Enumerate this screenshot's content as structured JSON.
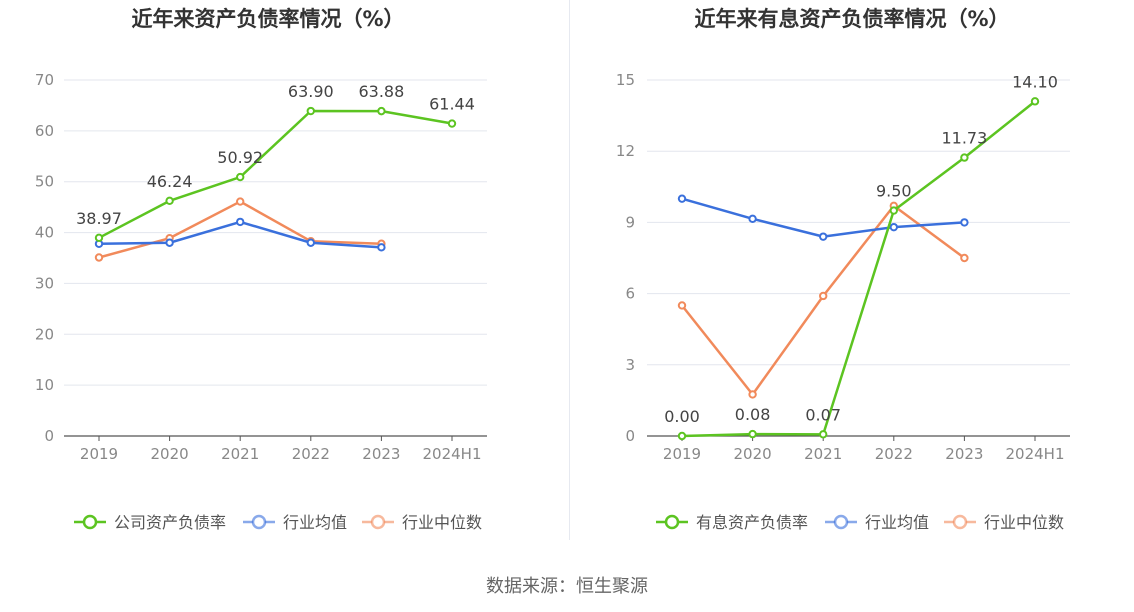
{
  "footer": {
    "source_text": "数据来源：恒生聚源"
  },
  "chart_data": [
    {
      "type": "line",
      "title": "近年来资产负债率情况（%）",
      "categories": [
        "2019",
        "2020",
        "2021",
        "2022",
        "2023",
        "2024H1"
      ],
      "ylim": [
        0,
        70
      ],
      "yticks": [
        0,
        10,
        20,
        30,
        40,
        50,
        60,
        70
      ],
      "grid": true,
      "legend_position": "bottom",
      "series": [
        {
          "name": "公司资产负债率",
          "color": "#5cc421",
          "values": [
            38.97,
            46.24,
            50.92,
            63.9,
            63.88,
            61.44
          ],
          "labels": [
            "38.97",
            "46.24",
            "50.92",
            "63.90",
            "63.88",
            "61.44"
          ]
        },
        {
          "name": "行业均值",
          "color": "#3a70dc",
          "values": [
            37.8,
            38.0,
            42.1,
            38.0,
            37.1,
            null
          ]
        },
        {
          "name": "行业中位数",
          "color": "#f18a5b",
          "values": [
            35.1,
            38.9,
            46.1,
            38.3,
            37.8,
            null
          ]
        }
      ]
    },
    {
      "type": "line",
      "title": "近年来有息资产负债率情况（%）",
      "categories": [
        "2019",
        "2020",
        "2021",
        "2022",
        "2023",
        "2024H1"
      ],
      "ylim": [
        0,
        15
      ],
      "yticks": [
        0,
        3,
        6,
        9,
        12,
        15
      ],
      "grid": true,
      "legend_position": "bottom",
      "series": [
        {
          "name": "有息资产负债率",
          "color": "#5cc421",
          "values": [
            0.0,
            0.08,
            0.07,
            9.5,
            11.73,
            14.1
          ],
          "labels": [
            "0.00",
            "0.08",
            "0.07",
            "9.50",
            "11.73",
            "14.10"
          ]
        },
        {
          "name": "行业均值",
          "color": "#3a70dc",
          "values": [
            10.0,
            9.15,
            8.4,
            8.8,
            9.0,
            null
          ]
        },
        {
          "name": "行业中位数",
          "color": "#f18a5b",
          "values": [
            5.5,
            1.75,
            5.9,
            9.7,
            7.5,
            null
          ]
        }
      ]
    }
  ]
}
